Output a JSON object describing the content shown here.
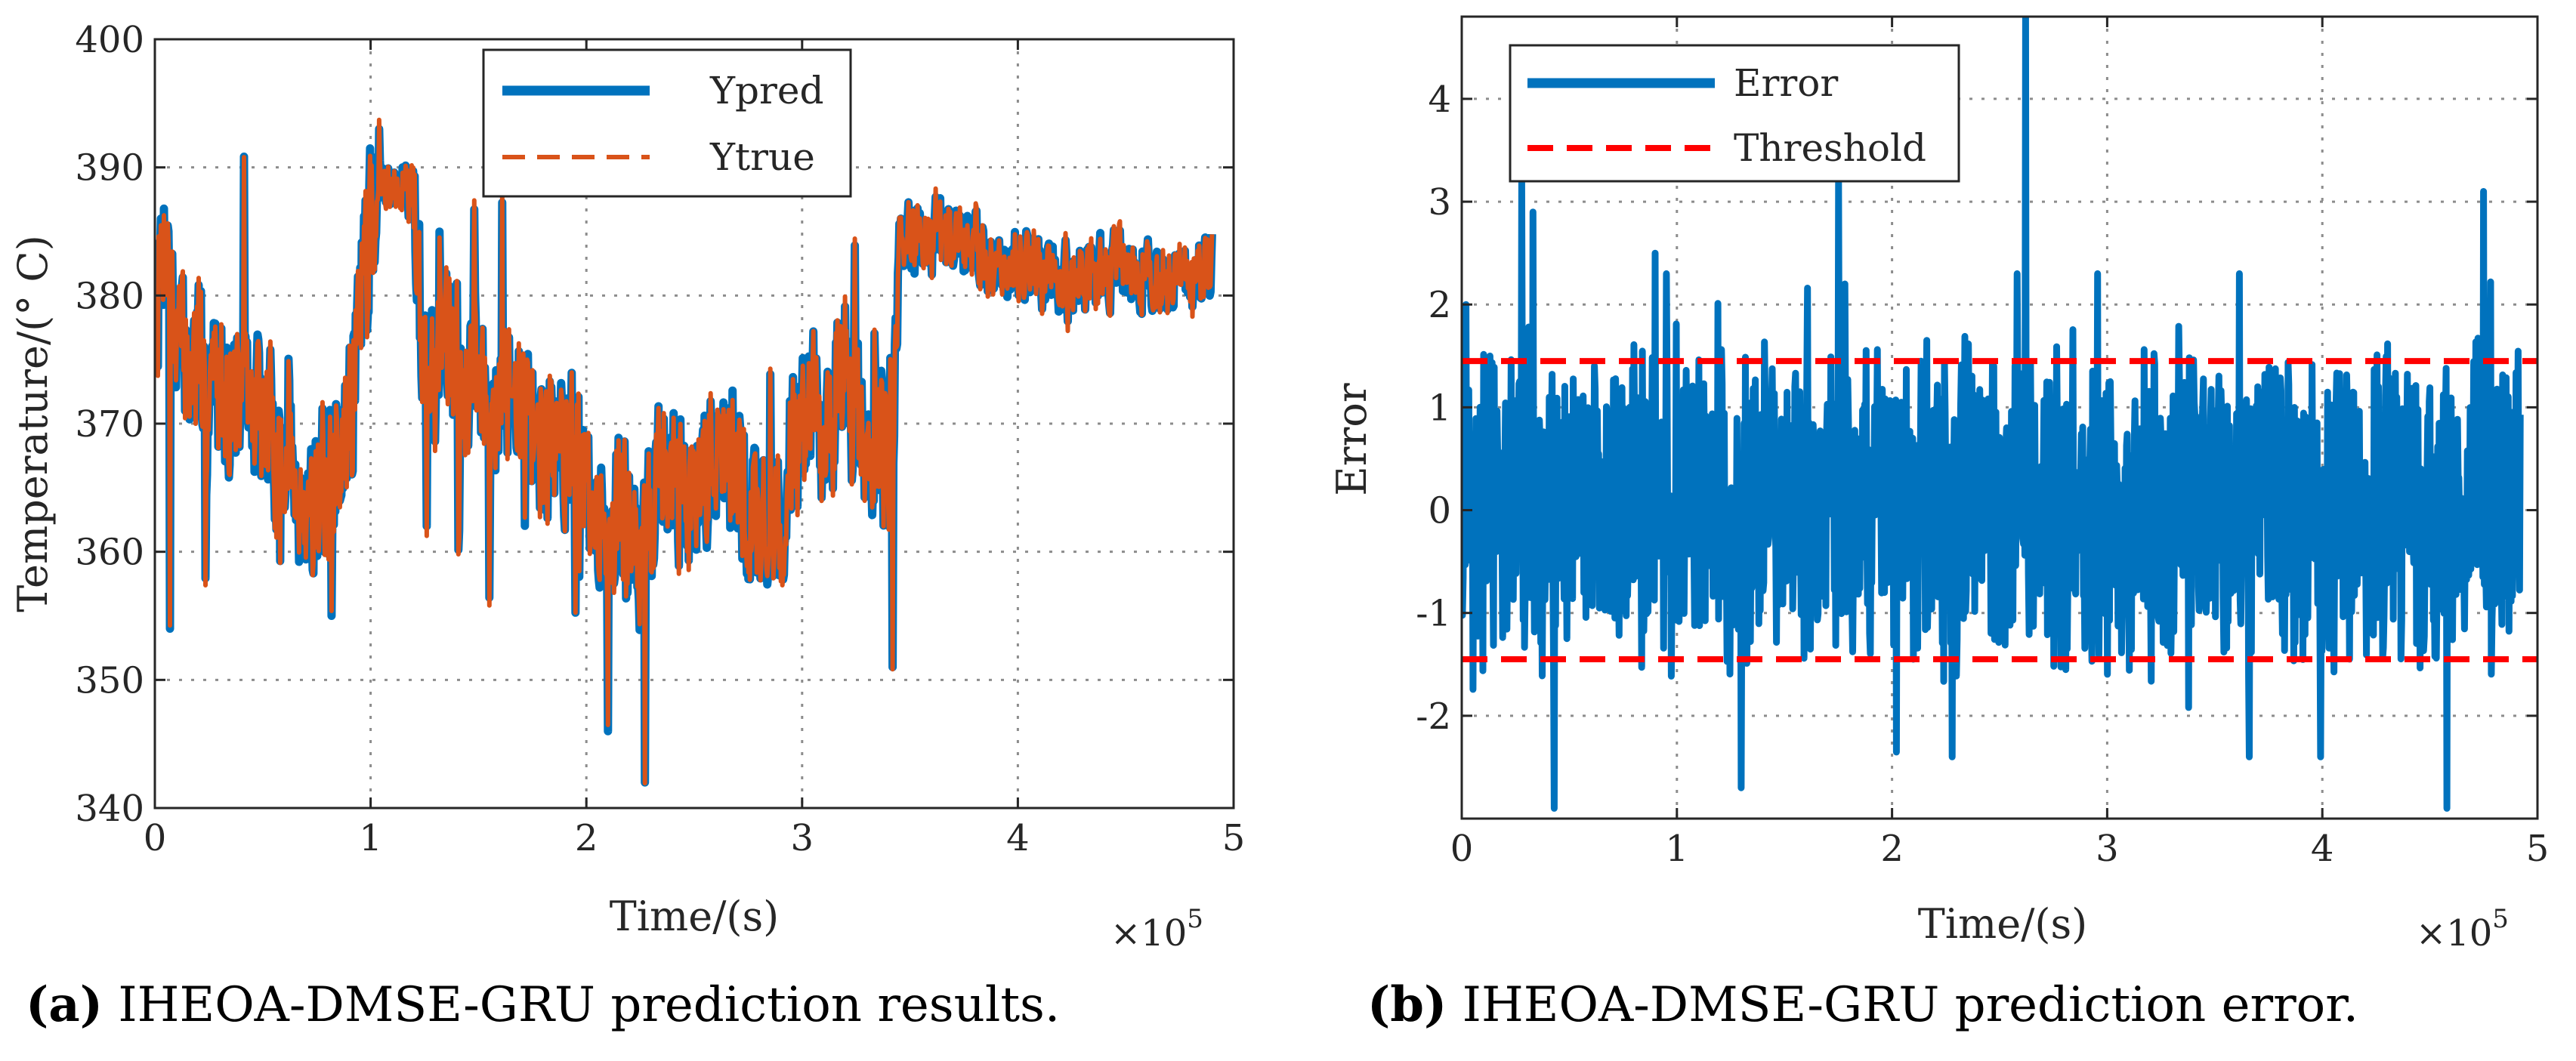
{
  "chart_data": [
    {
      "type": "line",
      "panel": "a",
      "caption_letter": "(a)",
      "caption_text": " IHEOA-DMSE-GRU prediction results.",
      "xlabel": "Time/(s)",
      "ylabel": "Temperature/(° C)",
      "x_exponent_label": "×10",
      "x_exponent_power": "5",
      "xlim": [
        0,
        5
      ],
      "ylim": [
        340,
        400
      ],
      "xticks": [
        "0",
        "1",
        "2",
        "3",
        "4",
        "5"
      ],
      "yticks": [
        "340",
        "350",
        "360",
        "370",
        "380",
        "390",
        "400"
      ],
      "grid": true,
      "legend_position": "top-center",
      "colors": {
        "ypred": "#0072BD",
        "ytrue": "#D95319"
      },
      "series": [
        {
          "name": "Ypred",
          "style": "solid",
          "color": "#0072BD"
        },
        {
          "name": "Ytrue",
          "style": "dashed",
          "color": "#D95319"
        }
      ],
      "trend_keypoints": {
        "x": [
          0,
          0.05,
          0.1,
          0.2,
          0.3,
          0.4,
          0.55,
          0.7,
          0.8,
          0.9,
          1.0,
          1.05,
          1.1,
          1.2,
          1.25,
          1.35,
          1.5,
          1.7,
          1.8,
          1.95,
          2.05,
          2.15,
          2.25,
          2.35,
          2.45,
          2.6,
          2.75,
          2.9,
          3.0,
          3.1,
          3.2,
          3.3,
          3.42,
          3.45,
          3.55,
          3.7,
          3.8,
          3.9,
          4.0,
          4.2,
          4.4,
          4.6,
          4.75,
          4.9
        ],
        "y": [
          378,
          386,
          376,
          374,
          373,
          372,
          369,
          364,
          365,
          371,
          386,
          388,
          389,
          389,
          374,
          375,
          374,
          371,
          369,
          368,
          360,
          364,
          358,
          367,
          364,
          368,
          363,
          362,
          372,
          370,
          372,
          370,
          366,
          384,
          385,
          384,
          384,
          382,
          383,
          381,
          382,
          382,
          381,
          382
        ]
      }
    },
    {
      "type": "line",
      "panel": "b",
      "caption_letter": "(b)",
      "caption_text": " IHEOA-DMSE-GRU prediction error.",
      "xlabel": "Time/(s)",
      "ylabel": "Error",
      "x_exponent_label": "×10",
      "x_exponent_power": "5",
      "xlim": [
        0,
        5
      ],
      "ylim": [
        -3,
        4.8
      ],
      "xticks": [
        "0",
        "1",
        "2",
        "3",
        "4",
        "5"
      ],
      "yticks": [
        "-2",
        "-1",
        "0",
        "1",
        "2",
        "3",
        "4"
      ],
      "grid": true,
      "legend_position": "top-left",
      "colors": {
        "error": "#0072BD",
        "threshold": "#FF0000"
      },
      "series": [
        {
          "name": "Error",
          "style": "solid",
          "color": "#0072BD"
        },
        {
          "name": "Threshold",
          "style": "dashed",
          "color": "#FF0000",
          "values": [
            1.45,
            -1.45
          ]
        }
      ],
      "spikes": {
        "x": [
          0.02,
          0.28,
          0.33,
          0.43,
          0.9,
          1.3,
          1.75,
          1.78,
          2.62,
          4.58,
          4.75
        ],
        "y": [
          2.0,
          3.2,
          2.9,
          -2.9,
          2.5,
          -2.7,
          3.2,
          2.2,
          4.8,
          -2.9,
          3.1
        ]
      }
    }
  ]
}
